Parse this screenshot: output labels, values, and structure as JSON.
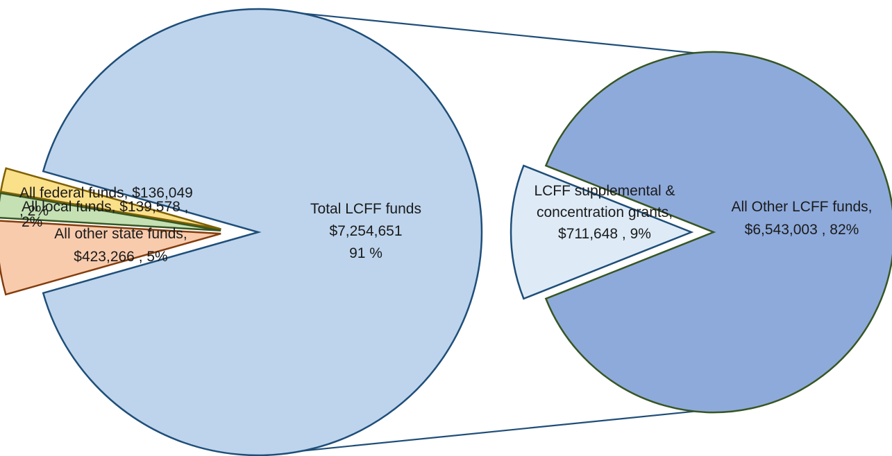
{
  "chart_data": [
    {
      "type": "pie",
      "slices": [
        {
          "name": "Total LCFF funds",
          "value": 7254651,
          "percent": 91,
          "color": "#bdd4ec",
          "stroke": "#1f4e79",
          "label_lines": [
            "Total LCFF funds",
            "$7,254,651",
            "91 %"
          ]
        },
        {
          "name": "All federal funds",
          "value": 136049,
          "percent": 2,
          "color": "#fbe08a",
          "stroke": "#7f6000",
          "label_lines": [
            "All federal funds, $136,049",
            ", 2%"
          ]
        },
        {
          "name": "All local funds",
          "value": 139578,
          "percent": 2,
          "color": "#c5e0b3",
          "stroke": "#375623",
          "label_lines": [
            "All local funds, $139,578 ,",
            "2%"
          ]
        },
        {
          "name": "All other state funds",
          "value": 423266,
          "percent": 5,
          "color": "#f8cbad",
          "stroke": "#843c0c",
          "label_lines": [
            "All other state funds,",
            "$423,266 , 5%"
          ]
        }
      ]
    },
    {
      "type": "pie",
      "slices": [
        {
          "name": "All Other LCFF funds",
          "value": 6543003,
          "percent": 82,
          "color": "#8eaadb",
          "stroke": "#375623",
          "label_lines": [
            "All Other LCFF funds,",
            "$6,543,003 , 82%"
          ]
        },
        {
          "name": "LCFF supplemental & concentration grants",
          "value": 711648,
          "percent": 9,
          "color": "#deebf7",
          "stroke": "#1f4e79",
          "label_lines": [
            "LCFF supplemental &",
            "concentration grants,",
            "$711,648 , 9%"
          ]
        }
      ]
    }
  ],
  "colors": {
    "connector": "#1f4e79",
    "text": "#1a1a1a"
  }
}
